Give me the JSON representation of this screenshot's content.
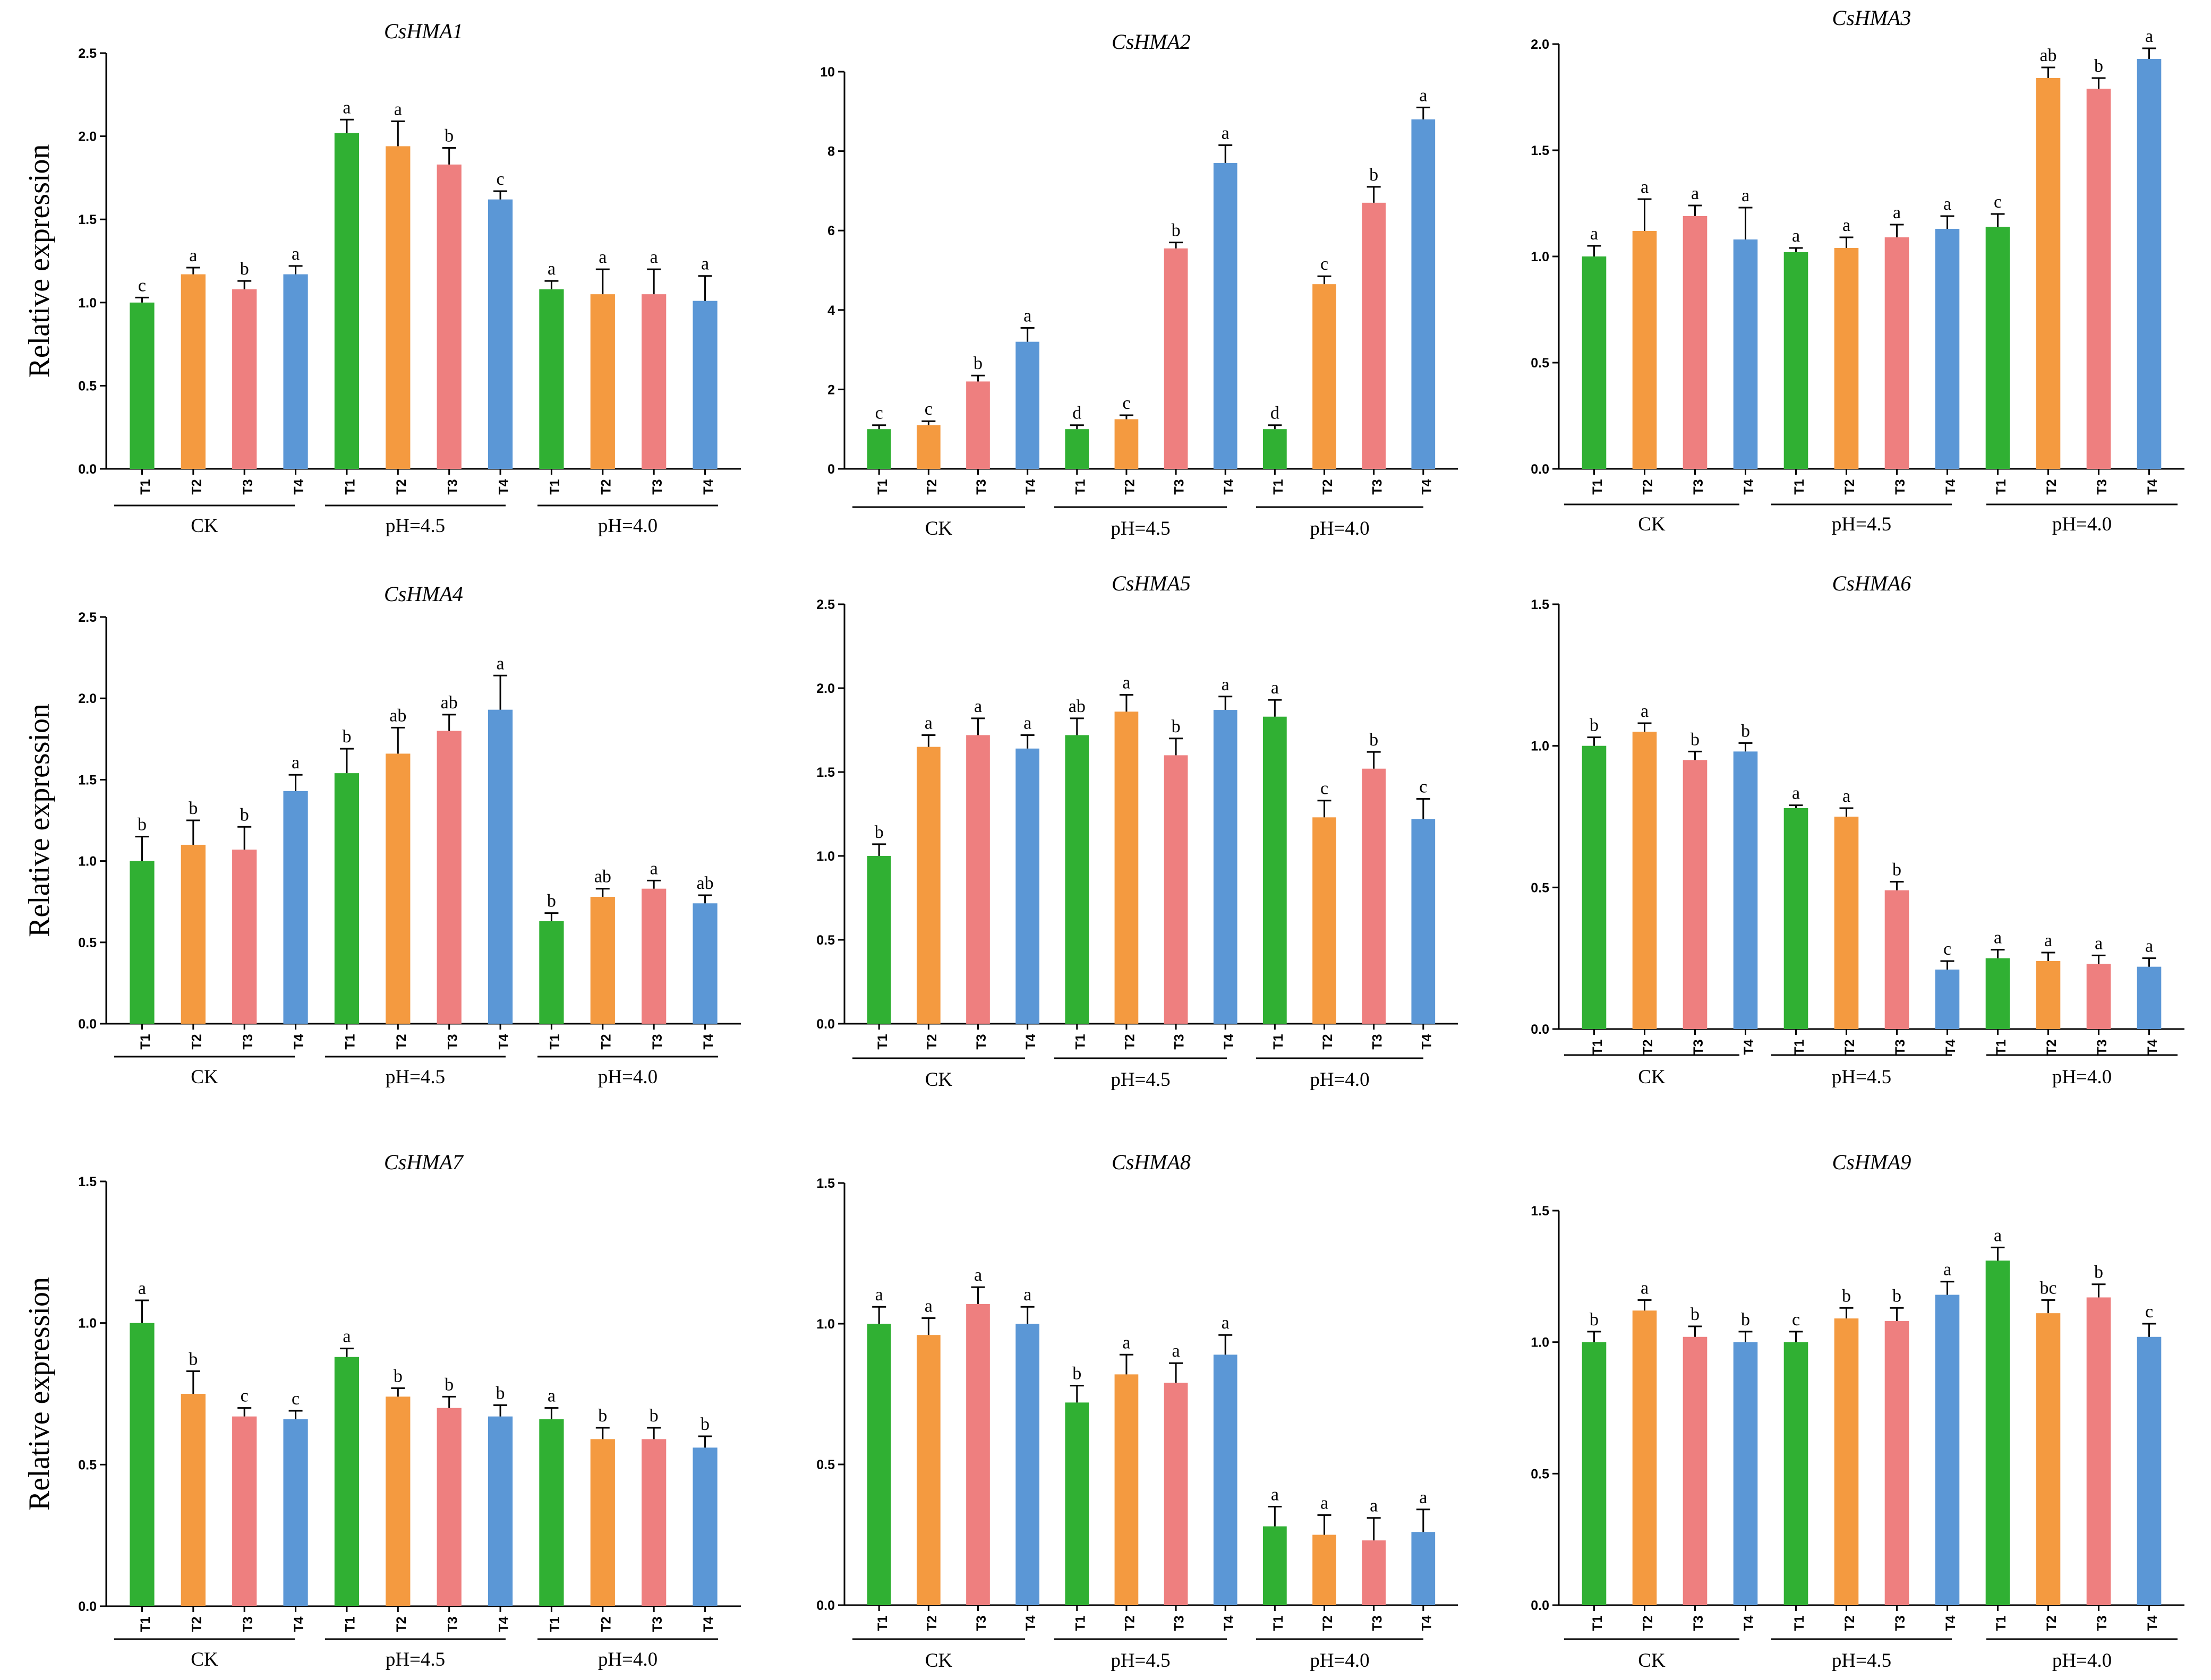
{
  "chart_data": [
    {
      "type": "bar",
      "title": "CsHMA1",
      "ylabel": "Relative expression",
      "ylim": [
        0,
        2.5
      ],
      "yticks": [
        "0.0",
        "0.5",
        "1.0",
        "1.5",
        "2.0",
        "2.5"
      ],
      "categories": [
        "T1",
        "T2",
        "T3",
        "T4",
        "T1",
        "T2",
        "T3",
        "T4",
        "T1",
        "T2",
        "T3",
        "T4"
      ],
      "groups": [
        "CK",
        "pH=4.5",
        "pH=4.0"
      ],
      "values": [
        1.0,
        1.17,
        1.08,
        1.17,
        2.02,
        1.94,
        1.83,
        1.62,
        1.08,
        1.05,
        1.05,
        1.01
      ],
      "errors": [
        0.03,
        0.04,
        0.05,
        0.05,
        0.08,
        0.15,
        0.1,
        0.05,
        0.05,
        0.15,
        0.15,
        0.15
      ],
      "labels": [
        "c",
        "a",
        "b",
        "a",
        "a",
        "a",
        "b",
        "c",
        "a",
        "a",
        "a",
        "a"
      ]
    },
    {
      "type": "bar",
      "title": "CsHMA2",
      "ylabel": "",
      "ylim": [
        0,
        10
      ],
      "yticks": [
        "0",
        "2",
        "4",
        "6",
        "8",
        "10"
      ],
      "categories": [
        "T1",
        "T2",
        "T3",
        "T4",
        "T1",
        "T2",
        "T3",
        "T4",
        "T1",
        "T2",
        "T3",
        "T4"
      ],
      "groups": [
        "CK",
        "pH=4.5",
        "pH=4.0"
      ],
      "values": [
        1.0,
        1.1,
        2.2,
        3.2,
        1.0,
        1.25,
        5.55,
        7.7,
        1.0,
        4.65,
        6.7,
        8.8
      ],
      "errors": [
        0.1,
        0.1,
        0.15,
        0.35,
        0.1,
        0.1,
        0.15,
        0.45,
        0.1,
        0.2,
        0.4,
        0.3
      ],
      "labels": [
        "c",
        "c",
        "b",
        "a",
        "d",
        "c",
        "b",
        "a",
        "d",
        "c",
        "b",
        "a"
      ]
    },
    {
      "type": "bar",
      "title": "CsHMA3",
      "ylabel": "",
      "ylim": [
        0,
        2.0
      ],
      "yticks": [
        "0.0",
        "0.5",
        "1.0",
        "1.5",
        "2.0"
      ],
      "categories": [
        "T1",
        "T2",
        "T3",
        "T4",
        "T1",
        "T2",
        "T3",
        "T4",
        "T1",
        "T2",
        "T3",
        "T4"
      ],
      "groups": [
        "CK",
        "pH=4.5",
        "pH=4.0"
      ],
      "values": [
        1.0,
        1.12,
        1.19,
        1.08,
        1.02,
        1.04,
        1.09,
        1.13,
        1.14,
        1.84,
        1.79,
        1.93
      ],
      "errors": [
        0.05,
        0.15,
        0.05,
        0.15,
        0.02,
        0.05,
        0.06,
        0.06,
        0.06,
        0.05,
        0.05,
        0.05
      ],
      "labels": [
        "a",
        "a",
        "a",
        "a",
        "a",
        "a",
        "a",
        "a",
        "c",
        "ab",
        "b",
        "a"
      ]
    },
    {
      "type": "bar",
      "title": "CsHMA4",
      "ylabel": "Relative expression",
      "ylim": [
        0,
        2.5
      ],
      "yticks": [
        "0.0",
        "0.5",
        "1.0",
        "1.5",
        "2.0",
        "2.5"
      ],
      "categories": [
        "T1",
        "T2",
        "T3",
        "T4",
        "T1",
        "T2",
        "T3",
        "T4",
        "T1",
        "T2",
        "T3",
        "T4"
      ],
      "groups": [
        "CK",
        "pH=4.5",
        "pH=4.0"
      ],
      "values": [
        1.0,
        1.1,
        1.07,
        1.43,
        1.54,
        1.66,
        1.8,
        1.93,
        0.63,
        0.78,
        0.83,
        0.74
      ],
      "errors": [
        0.15,
        0.15,
        0.14,
        0.1,
        0.15,
        0.16,
        0.1,
        0.21,
        0.05,
        0.05,
        0.05,
        0.05
      ],
      "labels": [
        "b",
        "b",
        "b",
        "a",
        "b",
        "ab",
        "ab",
        "a",
        "b",
        "ab",
        "a",
        "ab"
      ]
    },
    {
      "type": "bar",
      "title": "CsHMA5",
      "ylabel": "",
      "ylim": [
        0,
        2.5
      ],
      "yticks": [
        "0.0",
        "0.5",
        "1.0",
        "1.5",
        "2.0",
        "2.5"
      ],
      "categories": [
        "T1",
        "T2",
        "T3",
        "T4",
        "T1",
        "T2",
        "T3",
        "T4",
        "T1",
        "T2",
        "T3",
        "T4"
      ],
      "groups": [
        "CK",
        "pH=4.5",
        "pH=4.0"
      ],
      "values": [
        1.0,
        1.65,
        1.72,
        1.64,
        1.72,
        1.86,
        1.6,
        1.87,
        1.83,
        1.23,
        1.52,
        1.22
      ],
      "errors": [
        0.07,
        0.07,
        0.1,
        0.08,
        0.1,
        0.1,
        0.1,
        0.08,
        0.1,
        0.1,
        0.1,
        0.12
      ],
      "labels": [
        "b",
        "a",
        "a",
        "a",
        "ab",
        "a",
        "b",
        "a",
        "a",
        "c",
        "b",
        "c"
      ]
    },
    {
      "type": "bar",
      "title": "CsHMA6",
      "ylabel": "",
      "ylim": [
        0,
        1.5
      ],
      "yticks": [
        "0.0",
        "0.5",
        "1.0",
        "1.5"
      ],
      "categories": [
        "T1",
        "T2",
        "T3",
        "T4",
        "T1",
        "T2",
        "T3",
        "T4",
        "T1",
        "T2",
        "T3",
        "T4"
      ],
      "groups": [
        "CK",
        "pH=4.5",
        "pH=4.0"
      ],
      "values": [
        1.0,
        1.05,
        0.95,
        0.98,
        0.78,
        0.75,
        0.49,
        0.21,
        0.25,
        0.24,
        0.23,
        0.22
      ],
      "errors": [
        0.03,
        0.03,
        0.03,
        0.03,
        0.01,
        0.03,
        0.03,
        0.03,
        0.03,
        0.03,
        0.03,
        0.03
      ],
      "labels": [
        "b",
        "a",
        "b",
        "b",
        "a",
        "a",
        "b",
        "c",
        "a",
        "a",
        "a",
        "a"
      ]
    },
    {
      "type": "bar",
      "title": "CsHMA7",
      "ylabel": "Relative expression",
      "ylim": [
        0,
        1.5
      ],
      "yticks": [
        "0.0",
        "0.5",
        "1.0",
        "1.5"
      ],
      "categories": [
        "T1",
        "T2",
        "T3",
        "T4",
        "T1",
        "T2",
        "T3",
        "T4",
        "T1",
        "T2",
        "T3",
        "T4"
      ],
      "groups": [
        "CK",
        "pH=4.5",
        "pH=4.0"
      ],
      "values": [
        1.0,
        0.75,
        0.67,
        0.66,
        0.88,
        0.74,
        0.7,
        0.67,
        0.66,
        0.59,
        0.59,
        0.56
      ],
      "errors": [
        0.08,
        0.08,
        0.03,
        0.03,
        0.03,
        0.03,
        0.04,
        0.04,
        0.04,
        0.04,
        0.04,
        0.04
      ],
      "labels": [
        "a",
        "b",
        "c",
        "c",
        "a",
        "b",
        "b",
        "b",
        "a",
        "b",
        "b",
        "b"
      ]
    },
    {
      "type": "bar",
      "title": "CsHMA8",
      "ylabel": "",
      "ylim": [
        0,
        1.5
      ],
      "yticks": [
        "0.0",
        "0.5",
        "1.0",
        "1.5"
      ],
      "categories": [
        "T1",
        "T2",
        "T3",
        "T4",
        "T1",
        "T2",
        "T3",
        "T4",
        "T1",
        "T2",
        "T3",
        "T4"
      ],
      "groups": [
        "CK",
        "pH=4.5",
        "pH=4.0"
      ],
      "values": [
        1.0,
        0.96,
        1.07,
        1.0,
        0.72,
        0.82,
        0.79,
        0.89,
        0.28,
        0.25,
        0.23,
        0.26
      ],
      "errors": [
        0.06,
        0.06,
        0.06,
        0.06,
        0.06,
        0.07,
        0.07,
        0.07,
        0.07,
        0.07,
        0.08,
        0.08
      ],
      "labels": [
        "a",
        "a",
        "a",
        "a",
        "b",
        "a",
        "a",
        "a",
        "a",
        "a",
        "a",
        "a"
      ]
    },
    {
      "type": "bar",
      "title": "CsHMA9",
      "ylabel": "",
      "ylim": [
        0,
        1.5
      ],
      "yticks": [
        "0.0",
        "0.5",
        "1.0",
        "1.5"
      ],
      "categories": [
        "T1",
        "T2",
        "T3",
        "T4",
        "T1",
        "T2",
        "T3",
        "T4",
        "T1",
        "T2",
        "T3",
        "T4"
      ],
      "groups": [
        "CK",
        "pH=4.5",
        "pH=4.0"
      ],
      "values": [
        1.0,
        1.12,
        1.02,
        1.0,
        1.0,
        1.09,
        1.08,
        1.18,
        1.31,
        1.11,
        1.17,
        1.02
      ],
      "errors": [
        0.04,
        0.04,
        0.04,
        0.04,
        0.04,
        0.04,
        0.05,
        0.05,
        0.05,
        0.05,
        0.05,
        0.05
      ],
      "labels": [
        "b",
        "a",
        "b",
        "b",
        "c",
        "b",
        "b",
        "a",
        "a",
        "bc",
        "b",
        "c"
      ]
    }
  ],
  "colors": {
    "T1": "#30b033",
    "T2": "#f49a40",
    "T3": "#ee7f7f",
    "T4": "#5b97d6",
    "axis": "#000000"
  }
}
